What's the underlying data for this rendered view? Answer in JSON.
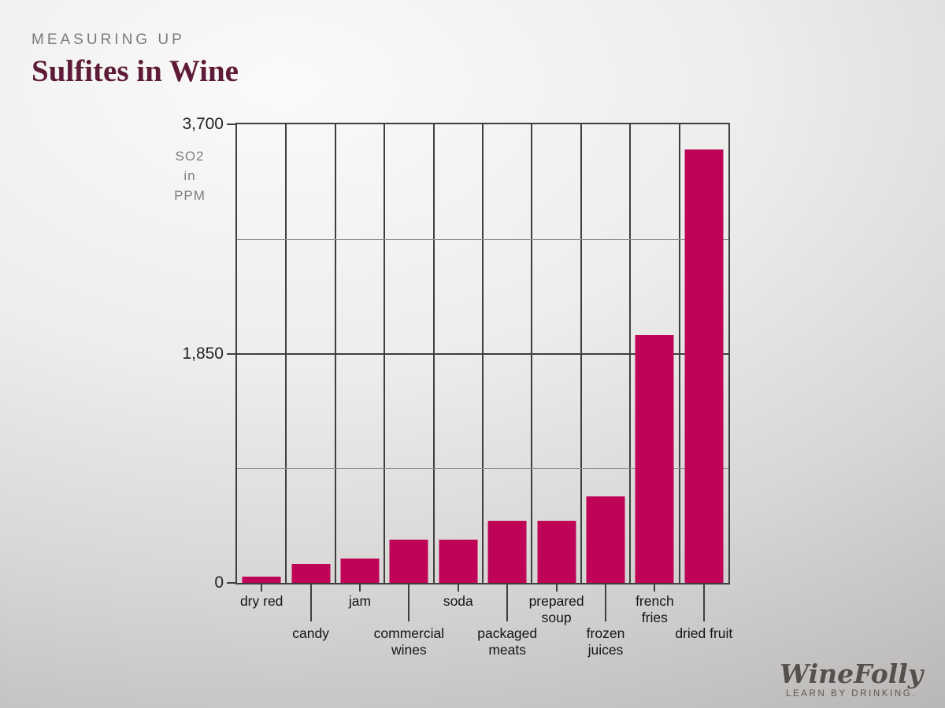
{
  "header": {
    "kicker": "MEASURING UP",
    "title": "Sulfites in Wine"
  },
  "chart_data": {
    "type": "bar",
    "title": "Sulfites in Wine",
    "ylabel": "SO2 in PPM",
    "ylabel_lines": [
      "SO2",
      "in",
      "PPM"
    ],
    "ylim": [
      0,
      3700
    ],
    "yticks": [
      {
        "value": 3700,
        "label": "3,700"
      },
      {
        "value": 1850,
        "label": "1,850"
      },
      {
        "value": 0,
        "label": "0"
      }
    ],
    "h_gridlines": [
      {
        "value": 2775,
        "weight": "minor"
      },
      {
        "value": 1850,
        "weight": "major"
      },
      {
        "value": 925,
        "weight": "minor"
      }
    ],
    "grid": "on",
    "legend": "none",
    "bar_color": "#bf0458",
    "categories": [
      "dry red",
      "candy",
      "jam",
      "commercial wines",
      "soda",
      "packaged meats",
      "prepared soup",
      "frozen juices",
      "french fries",
      "dried fruit"
    ],
    "values": [
      50,
      150,
      200,
      350,
      350,
      500,
      500,
      700,
      2000,
      3500
    ],
    "label_rows": [
      "upper",
      "lower",
      "upper",
      "lower",
      "upper",
      "lower",
      "upper",
      "lower",
      "upper",
      "lower"
    ],
    "label_lines": [
      [
        "dry red"
      ],
      [
        "candy"
      ],
      [
        "jam"
      ],
      [
        "commercial",
        "wines"
      ],
      [
        "soda"
      ],
      [
        "packaged",
        "meats"
      ],
      [
        "prepared",
        "soup"
      ],
      [
        "frozen",
        "juices"
      ],
      [
        "french",
        "fries"
      ],
      [
        "dried fruit"
      ]
    ]
  },
  "branding": {
    "logo_main": "WineFolly",
    "logo_tagline": "LEARN BY DRINKING."
  },
  "colors": {
    "bar": "#bf0458",
    "title": "#5e1b37",
    "kicker": "#7a7a7a",
    "grid_major": "#3f3f3f",
    "grid_minor": "#8f8f8f",
    "axis_text": "#232323",
    "unit_text": "#7d7d7d",
    "logo": "#54504c"
  }
}
